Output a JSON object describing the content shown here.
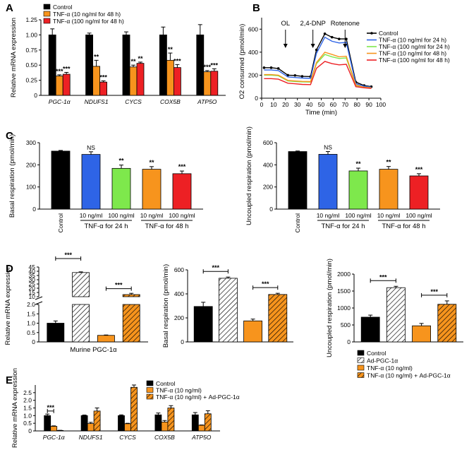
{
  "panel_labels": [
    "A",
    "B",
    "C",
    "D",
    "E"
  ],
  "colors": {
    "control": "#000000",
    "tnf10_48": "#f7941d",
    "tnf100_48": "#ed2024",
    "tnf10_24": "#2e64e6",
    "tnf100_24": "#7ee84c",
    "adpgc": "#ffffff"
  },
  "chart_data": [
    {
      "id": "A",
      "type": "bar",
      "ylabel": "Relative mRNA expression",
      "ylim": [
        0,
        1.25
      ],
      "yticks": [
        "0",
        "0.25",
        "0.50",
        "0.75",
        "1.00",
        "1.25"
      ],
      "categories": [
        "PGC-1α",
        "NDUFS1",
        "CYCS",
        "COX5B",
        "ATP5O"
      ],
      "legend": [
        "Control",
        "TNF-α (10 ng/ml for 48 h)",
        "TNF-α (100 ng/ml for 48 h)"
      ],
      "series": [
        {
          "name": "Control",
          "values": [
            1.0,
            1.0,
            1.0,
            1.0,
            1.0
          ],
          "err": [
            0.1,
            0.03,
            0.05,
            0.13,
            0.17
          ]
        },
        {
          "name": "TNF-α (10 ng/ml for 48 h)",
          "values": [
            0.32,
            0.48,
            0.47,
            0.58,
            0.39
          ],
          "err": [
            0.02,
            0.1,
            0.03,
            0.12,
            0.02
          ]
        },
        {
          "name": "TNF-α (100 ng/ml for 48 h)",
          "values": [
            0.35,
            0.22,
            0.53,
            0.46,
            0.4
          ],
          "err": [
            0.03,
            0.02,
            0.02,
            0.05,
            0.04
          ]
        }
      ],
      "stars": [
        [
          "",
          "***",
          "***"
        ],
        [
          "",
          "**",
          "***"
        ],
        [
          "",
          "**",
          "**"
        ],
        [
          "",
          "**",
          "***"
        ],
        [
          "",
          "***",
          "***"
        ]
      ]
    },
    {
      "id": "B",
      "type": "line",
      "xlabel": "Time (min)",
      "ylabel": "O2 consumed (pmol/min)",
      "xlim": [
        0,
        100
      ],
      "ylim": [
        0,
        700
      ],
      "xticks": [
        "0",
        "10",
        "20",
        "30",
        "40",
        "50",
        "60",
        "70",
        "80",
        "90",
        "100"
      ],
      "yticks": [
        "0",
        "200",
        "400",
        "600"
      ],
      "annotations": [
        {
          "label": "OL",
          "x": 20
        },
        {
          "label": "2,4-DNP",
          "x": 43
        },
        {
          "label": "Rotenone",
          "x": 70
        }
      ],
      "x": [
        2,
        8,
        14,
        22,
        28,
        34,
        41,
        46,
        53,
        59,
        65,
        71,
        79,
        86,
        92
      ],
      "series": [
        {
          "name": "Control",
          "values": [
            265,
            265,
            258,
            200,
            198,
            190,
            188,
            420,
            560,
            530,
            515,
            515,
            140,
            110,
            100
          ]
        },
        {
          "name": "TNF-α (10 ng/ml for 24 h)",
          "values": [
            245,
            245,
            240,
            185,
            180,
            175,
            172,
            390,
            530,
            495,
            480,
            485,
            125,
            105,
            95
          ]
        },
        {
          "name": "TNF-α (100 ng/ml for 24 h)",
          "values": [
            200,
            200,
            195,
            150,
            145,
            142,
            140,
            300,
            380,
            360,
            345,
            350,
            110,
            95,
            90
          ]
        },
        {
          "name": "TNF-α (10 ng/ml for 48 h)",
          "values": [
            205,
            205,
            200,
            155,
            150,
            146,
            144,
            310,
            400,
            380,
            360,
            365,
            115,
            95,
            90
          ]
        },
        {
          "name": "TNF-α (100 ng/ml for 48 h)",
          "values": [
            170,
            170,
            165,
            130,
            125,
            120,
            118,
            260,
            320,
            300,
            290,
            295,
            100,
            90,
            85
          ]
        }
      ]
    },
    {
      "id": "C1",
      "type": "bar",
      "ylabel": "Basal respiration (pmol/min)",
      "ylim": [
        0,
        300
      ],
      "yticks": [
        "0",
        "100",
        "200",
        "300"
      ],
      "categories": [
        "Control",
        "10 ng/ml",
        "100 ng/ml",
        "10 ng/ml",
        "100 ng/ml"
      ],
      "groups": [
        "TNF-α for 24 h",
        "TNF-α for 48 h"
      ],
      "values": [
        262,
        247,
        184,
        180,
        160
      ],
      "err": [
        3,
        12,
        15,
        12,
        12
      ],
      "stars": [
        "",
        "NS",
        "**",
        "**",
        "***"
      ]
    },
    {
      "id": "C2",
      "type": "bar",
      "ylabel": "Uncoupled respiration (pmol/min)",
      "ylim": [
        0,
        600
      ],
      "yticks": [
        "0",
        "200",
        "400",
        "600"
      ],
      "categories": [
        "Control",
        "10 ng/ml",
        "100 ng/ml",
        "10 ng/ml",
        "100 ng/ml"
      ],
      "groups": [
        "TNF-α for 24 h",
        "TNF-α for 48 h"
      ],
      "values": [
        520,
        495,
        345,
        360,
        300
      ],
      "err": [
        5,
        25,
        25,
        25,
        20
      ],
      "stars": [
        "",
        "NS",
        "**",
        "**",
        "***"
      ]
    },
    {
      "id": "D1",
      "type": "bar",
      "ylabel": "Relative mRNA expression",
      "xlabel": "Murine PGC-1α",
      "yticks_low": [
        "0",
        "0.5",
        "1.0",
        "1.5",
        "2.0"
      ],
      "yticks_high": [
        "10",
        "15",
        "20",
        "25",
        "30",
        "35",
        "40",
        "45"
      ],
      "values": [
        1.0,
        38.5,
        0.35,
        12.5
      ],
      "err": [
        0.12,
        0.8,
        0.02,
        1.5
      ],
      "brackets": [
        "***",
        "***"
      ]
    },
    {
      "id": "D2",
      "type": "bar",
      "ylabel": "Basal respiration (pmol/min)",
      "ylim": [
        0,
        600
      ],
      "yticks": [
        "0",
        "200",
        "400",
        "600"
      ],
      "values": [
        295,
        530,
        175,
        395
      ],
      "err": [
        35,
        10,
        15,
        10
      ],
      "brackets": [
        "***",
        "***"
      ]
    },
    {
      "id": "D3",
      "type": "bar",
      "ylabel": "Uncoupled respiration (pmol/min)",
      "ylim": [
        0,
        2000
      ],
      "yticks": [
        "0",
        "500",
        "1000",
        "1500",
        "2000"
      ],
      "values": [
        730,
        1600,
        475,
        1110
      ],
      "err": [
        60,
        40,
        70,
        100
      ],
      "brackets": [
        "***",
        "***"
      ]
    },
    {
      "id": "Dlegend",
      "legend": [
        "Control",
        "Ad-PGC-1α",
        "TNF-α (10 ng/ml)",
        "TNF-α (10 ng/ml) + Ad-PGC-1α"
      ]
    },
    {
      "id": "E",
      "type": "bar",
      "ylabel": "Relative mRNA expression",
      "ylim": [
        0,
        3
      ],
      "yticks": [
        "0",
        "0.5",
        "1.0",
        "1.5",
        "2.0",
        "2.5"
      ],
      "categories": [
        "PGC-1α",
        "NDUFS1",
        "CYCS",
        "COX5B",
        "ATP5O"
      ],
      "legend": [
        "Control",
        "TNF-α (10 ng/ml)",
        "TNF-α (10 ng/ml) + Ad-PGC-1α"
      ],
      "series": [
        {
          "name": "Control",
          "values": [
            1.0,
            1.0,
            1.0,
            1.05,
            1.05
          ],
          "err": [
            0.1,
            0.04,
            0.05,
            0.12,
            0.15
          ]
        },
        {
          "name": "TNF-α (10 ng/ml)",
          "values": [
            0.3,
            0.48,
            0.47,
            0.58,
            0.37
          ],
          "err": [
            0.03,
            0.08,
            0.03,
            0.1,
            0.02
          ]
        },
        {
          "name": "TNF-α (10 ng/ml) + Ad-PGC-1α",
          "values": [
            0.03,
            1.3,
            2.85,
            1.5,
            1.12
          ],
          "err": [
            0.01,
            0.2,
            0.15,
            0.15,
            0.2
          ]
        }
      ],
      "stars": [
        "***"
      ]
    }
  ]
}
